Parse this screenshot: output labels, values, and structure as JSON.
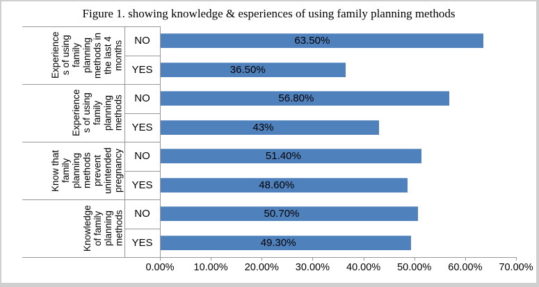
{
  "title": "Figure 1. showing knowledge & esperiences of using family planning methods",
  "colors": {
    "bar": "#4F81BD",
    "line": "#969696",
    "frame": "#cfcfcf",
    "text": "#000000"
  },
  "chart_data": {
    "type": "bar",
    "orientation": "horizontal",
    "title": "Figure 1. showing knowledge & esperiences of using family planning methods",
    "xlabel": "",
    "ylabel": "",
    "xlim": [
      0,
      70
    ],
    "x_tick_labels": [
      "0.00%",
      "10.00%",
      "20.00%",
      "30.00%",
      "40.00%",
      "50.00%",
      "60.00%",
      "70.00%"
    ],
    "legend": "none",
    "grid": "off",
    "groups": [
      {
        "label": "Experiences of using family planning methods in the last 4 months",
        "label_lines": "Experience\ns of using\nfamily\nplanning\nmethods in\nthe last 4\nmonths",
        "bars": [
          {
            "category": "NO",
            "value": 63.5,
            "label": "63.50%"
          },
          {
            "category": "YES",
            "value": 36.5,
            "label": "36.50%"
          }
        ]
      },
      {
        "label": "Experiences of using family planning methods",
        "label_lines": "Experience\ns of using\nfamily\nplanning\nmethods",
        "bars": [
          {
            "category": "NO",
            "value": 56.8,
            "label": "56.80%"
          },
          {
            "category": "YES",
            "value": 43,
            "label": "43%"
          }
        ]
      },
      {
        "label": "Know that family planning methods prevent unintended pregnancy",
        "label_lines": "Know that\nfamily\nplanning\nmethods\nprevent\nunintended\npregnancy",
        "bars": [
          {
            "category": "NO",
            "value": 51.4,
            "label": "51.40%"
          },
          {
            "category": "YES",
            "value": 48.6,
            "label": "48.60%"
          }
        ]
      },
      {
        "label": "Knowledge of family planning methods",
        "label_lines": "Knowledge\nof family\nplanning\nmethods",
        "bars": [
          {
            "category": "NO",
            "value": 50.7,
            "label": "50.70%"
          },
          {
            "category": "YES",
            "value": 49.3,
            "label": "49.30%"
          }
        ]
      }
    ]
  }
}
